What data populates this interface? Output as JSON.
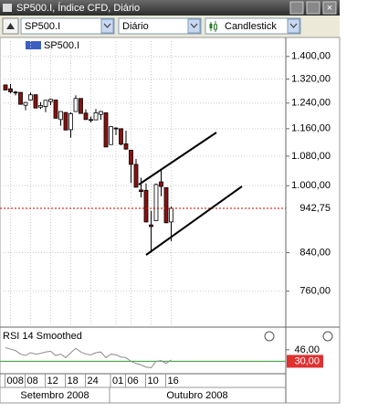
{
  "window": {
    "title": "SP500.I, Índice CFD, Diário"
  },
  "toolbar": {
    "symbol": "SP500.I",
    "period": "Diário",
    "chart_type": "Candlestick"
  },
  "chart_data": [
    {
      "type": "candlestick",
      "legend": "SP500.I",
      "categories": [
        null,
        "008",
        null,
        null,
        null,
        "08",
        null,
        null,
        null,
        "12",
        null,
        null,
        null,
        "18",
        null,
        null,
        null,
        "24",
        null,
        null,
        null,
        null,
        "01",
        null,
        null,
        "06",
        null,
        null,
        null,
        "10",
        null,
        null,
        null,
        "16"
      ],
      "month_labels": [
        "Setembro 2008",
        "Outubro 2008"
      ],
      "open": [
        1300,
        1287,
        1276,
        1275,
        1233,
        1250,
        1267,
        1227,
        1229,
        1245,
        1250,
        1188,
        1210,
        1157,
        1213,
        1255,
        1208,
        1188,
        1187,
        1204,
        1209,
        1113,
        1162,
        1160,
        1115,
        1097,
        1057,
        989,
        988,
        903,
        913,
        1010,
        995,
        910
      ],
      "high": [
        1300,
        1303,
        1280,
        1275,
        1244,
        1275,
        1269,
        1243,
        1249,
        1255,
        1250,
        1214,
        1210,
        1211,
        1265,
        1255,
        1220,
        1197,
        1221,
        1215,
        1209,
        1167,
        1164,
        1160,
        1154,
        1097,
        1072,
        1021,
        1006,
        937,
        1006,
        1045,
        995,
        947
      ],
      "low": [
        1282,
        1272,
        1265,
        1236,
        1217,
        1248,
        1224,
        1221,
        1211,
        1233,
        1192,
        1169,
        1156,
        1133,
        1213,
        1207,
        1187,
        1179,
        1187,
        1187,
        1106,
        1113,
        1141,
        1111,
        1098,
        1007,
        996,
        970,
        909,
        840,
        913,
        973,
        907,
        866
      ],
      "close": [
        1283,
        1277,
        1275,
        1236,
        1242,
        1267,
        1224,
        1232,
        1249,
        1252,
        1192,
        1213,
        1156,
        1206,
        1255,
        1207,
        1188,
        1186,
        1209,
        1213,
        1106,
        1166,
        1161,
        1114,
        1100,
        1057,
        996,
        985,
        910,
        899,
        1003,
        998,
        908,
        942.75
      ],
      "ylim": [
        697,
        1457
      ],
      "log_scale": true,
      "grid": true,
      "yticks": [
        {
          "value": 760,
          "label": "760,00"
        },
        {
          "value": 840,
          "label": "840,00"
        },
        {
          "value": 1000,
          "label": "1.000,00"
        },
        {
          "value": 1080,
          "label": "1.080,00"
        },
        {
          "value": 1160,
          "label": "1.160,00"
        },
        {
          "value": 1240,
          "label": "1.240,00"
        },
        {
          "value": 1320,
          "label": "1.320,00"
        },
        {
          "value": 1400,
          "label": "1.400,00"
        }
      ],
      "last_price": {
        "value": 942.75,
        "label": "942,75"
      },
      "up_color": "#ffffff",
      "down_color": "#8b1010",
      "last_price_color": "#cc0000"
    },
    {
      "type": "line",
      "title": "RSI 14 Smoothed",
      "values": [
        49,
        47,
        45,
        40,
        38,
        42,
        40,
        41,
        43,
        44,
        38,
        40,
        35,
        42,
        48,
        43,
        40,
        39,
        42,
        43,
        35,
        40,
        39,
        36,
        35,
        30,
        27,
        25,
        22,
        21,
        30,
        31,
        27,
        32
      ],
      "color": "#8c8c8c",
      "ylim": [
        14,
        56
      ],
      "yticks": [
        {
          "value": 46,
          "label": "46,00"
        }
      ],
      "level": {
        "value": 30,
        "label": "30,00"
      },
      "level_color": "#2e9e2e"
    }
  ]
}
